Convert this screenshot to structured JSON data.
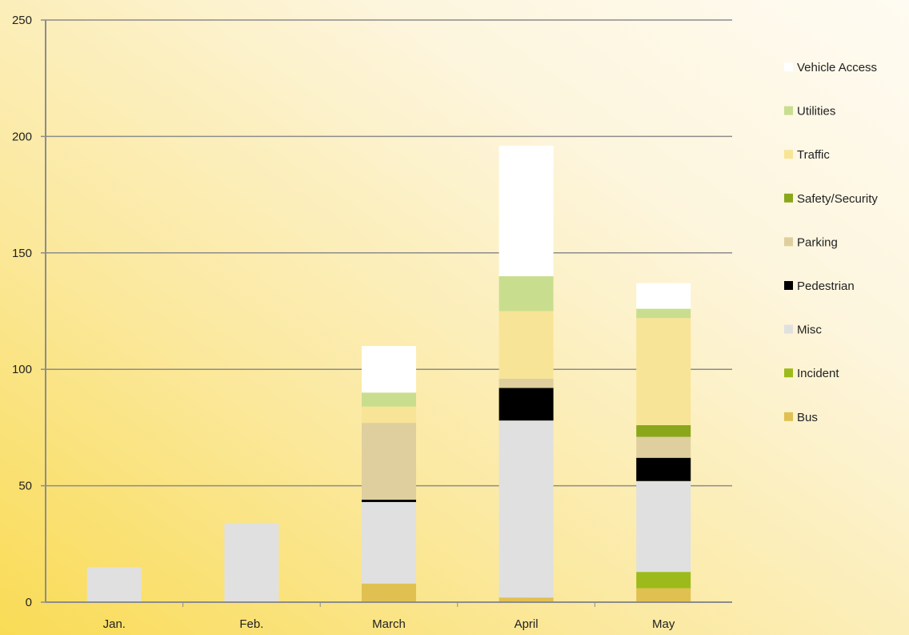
{
  "chart_data": {
    "type": "bar",
    "stacked": true,
    "title": "",
    "xlabel": "",
    "ylabel": "",
    "ylim": [
      0,
      250
    ],
    "yticks": [
      0,
      50,
      100,
      150,
      200,
      250
    ],
    "grid": true,
    "legend_position": "right",
    "categories": [
      "Jan.",
      "Feb.",
      "March",
      "April",
      "May"
    ],
    "series": [
      {
        "name": "Bus",
        "color": "#E0C050",
        "values": [
          0,
          0,
          8,
          2,
          6
        ]
      },
      {
        "name": "Incident",
        "color": "#9CBB1A",
        "values": [
          0,
          0,
          0,
          0,
          7
        ]
      },
      {
        "name": "Misc",
        "color": "#E0E0E0",
        "values": [
          15,
          34,
          35,
          76,
          39
        ]
      },
      {
        "name": "Pedestrian",
        "color": "#000000",
        "values": [
          0,
          0,
          1,
          14,
          10
        ]
      },
      {
        "name": "Parking",
        "color": "#DFCF9E",
        "values": [
          0,
          0,
          33,
          4,
          9
        ]
      },
      {
        "name": "Safety/Security",
        "color": "#8AA61B",
        "values": [
          0,
          0,
          0,
          0,
          5
        ]
      },
      {
        "name": "Traffic",
        "color": "#F8E496",
        "values": [
          0,
          0,
          7,
          29,
          46
        ]
      },
      {
        "name": "Utilities",
        "color": "#C8DE8E",
        "values": [
          0,
          0,
          6,
          15,
          4
        ]
      },
      {
        "name": "Vehicle Access",
        "color": "#FFFFFF",
        "values": [
          0,
          0,
          20,
          56,
          11
        ]
      }
    ],
    "legend_labels": [
      "Vehicle Access",
      "Utilities",
      "Traffic",
      "Safety/Security",
      "Parking",
      "Pedestrian",
      "Misc",
      "Incident",
      "Bus"
    ]
  }
}
